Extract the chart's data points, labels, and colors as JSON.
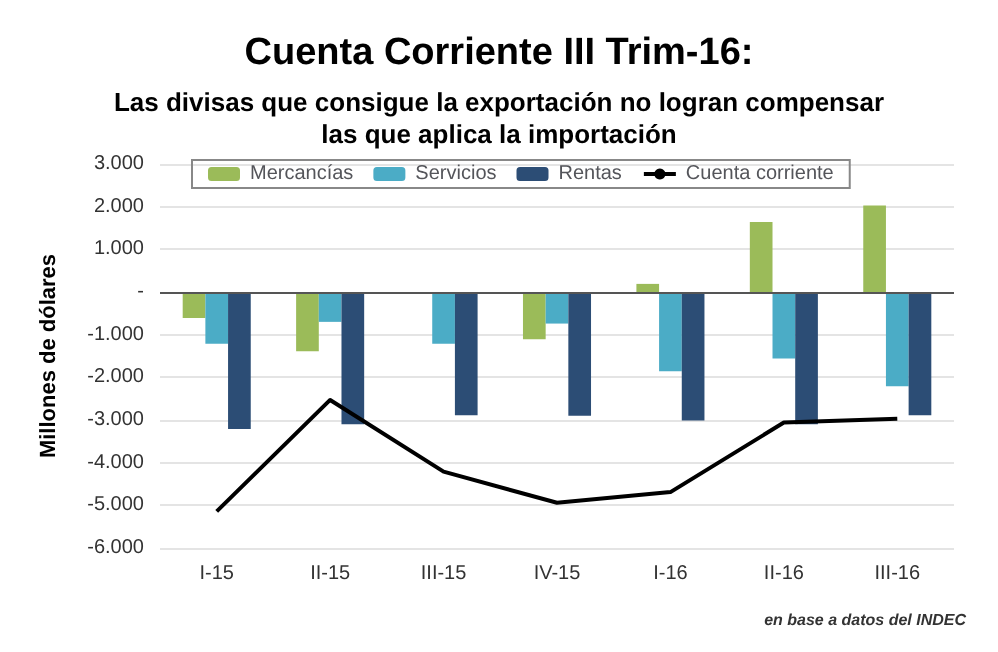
{
  "chart_data": {
    "type": "bar",
    "title": "Cuenta Corriente III Trim-16:",
    "subtitle": "Las divisas que consigue la exportación no logran compensar\nlas que aplica la importación",
    "ylabel": "Millones de dólares",
    "categories": [
      "I-15",
      "II-15",
      "III-15",
      "IV-15",
      "I-16",
      "II-16",
      "III-16"
    ],
    "series": [
      {
        "name": "Mercancías",
        "color": "#9bbb59",
        "values": [
          -610,
          -1390,
          0,
          -1110,
          190,
          1640,
          2030
        ]
      },
      {
        "name": "Servicios",
        "color": "#4bacc6",
        "values": [
          -1210,
          -700,
          -1210,
          -740,
          -1860,
          -1560,
          -2210
        ]
      },
      {
        "name": "Rentas",
        "color": "#2c4d75",
        "values": [
          -3210,
          -3100,
          -2890,
          -2900,
          -3010,
          -3100,
          -2890
        ]
      },
      {
        "name": "Cuenta corriente",
        "type": "line",
        "color": "#000000",
        "values": [
          -5140,
          -2530,
          -4210,
          -4940,
          -4690,
          -3060,
          -2970
        ]
      }
    ],
    "ylim": [
      -6000,
      3000
    ],
    "yticks": [
      {
        "value": -6000,
        "label": "-6.000"
      },
      {
        "value": -5000,
        "label": "-5.000"
      },
      {
        "value": -4000,
        "label": "-4.000"
      },
      {
        "value": -3000,
        "label": "-3.000"
      },
      {
        "value": -2000,
        "label": "-2.000"
      },
      {
        "value": -1000,
        "label": "-1.000"
      },
      {
        "value": 0,
        "label": "-"
      },
      {
        "value": 1000,
        "label": "1.000"
      },
      {
        "value": 2000,
        "label": "2.000"
      },
      {
        "value": 3000,
        "label": "3.000"
      }
    ],
    "grid": "y",
    "legend": "top",
    "marker": "none",
    "line_style": "solid",
    "annotations": [
      "en base a datos del INDEC"
    ]
  }
}
